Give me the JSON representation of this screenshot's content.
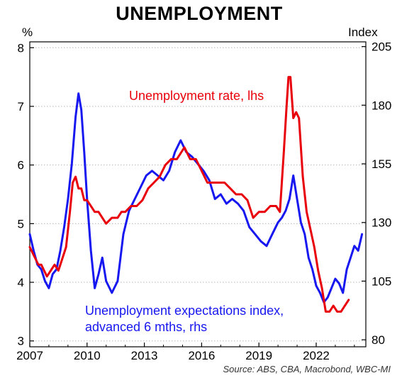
{
  "chart_data": {
    "type": "line",
    "title": "UNEMPLOYMENT",
    "left_axis_unit": "%",
    "right_axis_unit": "Index",
    "xlim": [
      2007.0,
      2024.6
    ],
    "ylim_left": [
      2.9,
      8.1
    ],
    "ylim_right": [
      77,
      207
    ],
    "x_ticks": [
      2007,
      2010,
      2013,
      2016,
      2019,
      2022
    ],
    "x_tick_labels": [
      "2007",
      "2010",
      "2013",
      "2016",
      "2019",
      "2022"
    ],
    "y_left_ticks": [
      3,
      4,
      5,
      6,
      7,
      8
    ],
    "y_left_tick_labels": [
      "3",
      "4",
      "5",
      "6",
      "7",
      "8"
    ],
    "y_right_ticks": [
      80,
      105,
      130,
      155,
      180,
      205
    ],
    "y_right_tick_labels": [
      "80",
      "105",
      "130",
      "155",
      "180",
      "205"
    ],
    "grid": "horizontal dotted",
    "source": "Source: ABS, CBA, Macrobond, WBC-MI",
    "series": [
      {
        "name": "Unemployment rate, lhs",
        "axis": "left",
        "color": "#e8000b",
        "x": [
          2007.0,
          2007.15,
          2007.3,
          2007.45,
          2007.6,
          2007.75,
          2007.9,
          2008.1,
          2008.3,
          2008.5,
          2008.7,
          2008.9,
          2009.1,
          2009.25,
          2009.4,
          2009.55,
          2009.7,
          2009.85,
          2010.0,
          2010.2,
          2010.4,
          2010.6,
          2010.8,
          2011.0,
          2011.3,
          2011.6,
          2011.8,
          2012.0,
          2012.3,
          2012.6,
          2012.9,
          2013.2,
          2013.5,
          2013.8,
          2014.1,
          2014.4,
          2014.7,
          2014.9,
          2015.1,
          2015.4,
          2015.7,
          2016.0,
          2016.3,
          2016.6,
          2016.9,
          2017.2,
          2017.5,
          2017.8,
          2018.1,
          2018.4,
          2018.7,
          2019.0,
          2019.3,
          2019.6,
          2019.9,
          2020.1,
          2020.3,
          2020.45,
          2020.55,
          2020.65,
          2020.8,
          2020.95,
          2021.1,
          2021.3,
          2021.5,
          2021.7,
          2021.9,
          2022.1,
          2022.3,
          2022.5,
          2022.7,
          2022.9,
          2023.1,
          2023.3,
          2023.5,
          2023.7
        ],
        "values": [
          4.6,
          4.5,
          4.4,
          4.3,
          4.3,
          4.2,
          4.1,
          4.2,
          4.3,
          4.2,
          4.4,
          4.6,
          5.2,
          5.7,
          5.8,
          5.6,
          5.6,
          5.4,
          5.4,
          5.3,
          5.2,
          5.2,
          5.1,
          5.0,
          5.1,
          5.1,
          5.2,
          5.2,
          5.3,
          5.3,
          5.4,
          5.6,
          5.7,
          5.8,
          6.0,
          6.1,
          6.1,
          6.2,
          6.3,
          6.1,
          6.1,
          5.9,
          5.7,
          5.7,
          5.7,
          5.7,
          5.6,
          5.5,
          5.5,
          5.4,
          5.1,
          5.2,
          5.2,
          5.3,
          5.3,
          5.2,
          6.2,
          7.0,
          7.5,
          7.5,
          6.8,
          6.9,
          6.8,
          5.8,
          5.2,
          4.9,
          4.6,
          4.2,
          3.9,
          3.5,
          3.5,
          3.6,
          3.5,
          3.5,
          3.6,
          3.7
        ]
      },
      {
        "name": "Unemployment expectations index, advanced 6 mths, rhs",
        "axis": "right",
        "color": "#1717f0",
        "x": [
          2007.0,
          2007.2,
          2007.4,
          2007.6,
          2007.8,
          2008.0,
          2008.2,
          2008.4,
          2008.6,
          2008.8,
          2009.0,
          2009.2,
          2009.4,
          2009.55,
          2009.7,
          2009.85,
          2010.0,
          2010.2,
          2010.4,
          2010.6,
          2010.8,
          2011.0,
          2011.3,
          2011.6,
          2011.9,
          2012.2,
          2012.5,
          2012.8,
          2013.1,
          2013.4,
          2013.7,
          2014.0,
          2014.3,
          2014.6,
          2014.9,
          2015.2,
          2015.5,
          2015.8,
          2016.1,
          2016.4,
          2016.7,
          2017.0,
          2017.3,
          2017.6,
          2017.9,
          2018.2,
          2018.5,
          2018.8,
          2019.1,
          2019.4,
          2019.7,
          2020.0,
          2020.2,
          2020.4,
          2020.6,
          2020.8,
          2021.0,
          2021.2,
          2021.4,
          2021.6,
          2021.8,
          2022.0,
          2022.2,
          2022.4,
          2022.6,
          2022.8,
          2023.0,
          2023.2,
          2023.4,
          2023.6,
          2023.8,
          2024.0,
          2024.2,
          2024.4
        ],
        "values": [
          125,
          118,
          112,
          110,
          105,
          102,
          108,
          110,
          118,
          128,
          140,
          155,
          175,
          185,
          178,
          160,
          140,
          118,
          102,
          108,
          115,
          105,
          100,
          105,
          125,
          135,
          140,
          145,
          150,
          152,
          150,
          148,
          152,
          160,
          165,
          160,
          158,
          155,
          152,
          148,
          140,
          142,
          138,
          140,
          138,
          135,
          128,
          125,
          122,
          120,
          125,
          130,
          132,
          135,
          140,
          150,
          140,
          130,
          125,
          115,
          110,
          103,
          100,
          96,
          98,
          102,
          106,
          104,
          100,
          110,
          115,
          120,
          118,
          125
        ]
      }
    ],
    "annotations": [
      {
        "text": "Unemployment rate, lhs",
        "color": "#e8000b",
        "series": 0
      },
      {
        "text": "Unemployment expectations index,",
        "color": "#1717f0",
        "series": 1
      },
      {
        "text": "advanced 6 mths, rhs",
        "color": "#1717f0",
        "series": 1
      }
    ]
  }
}
